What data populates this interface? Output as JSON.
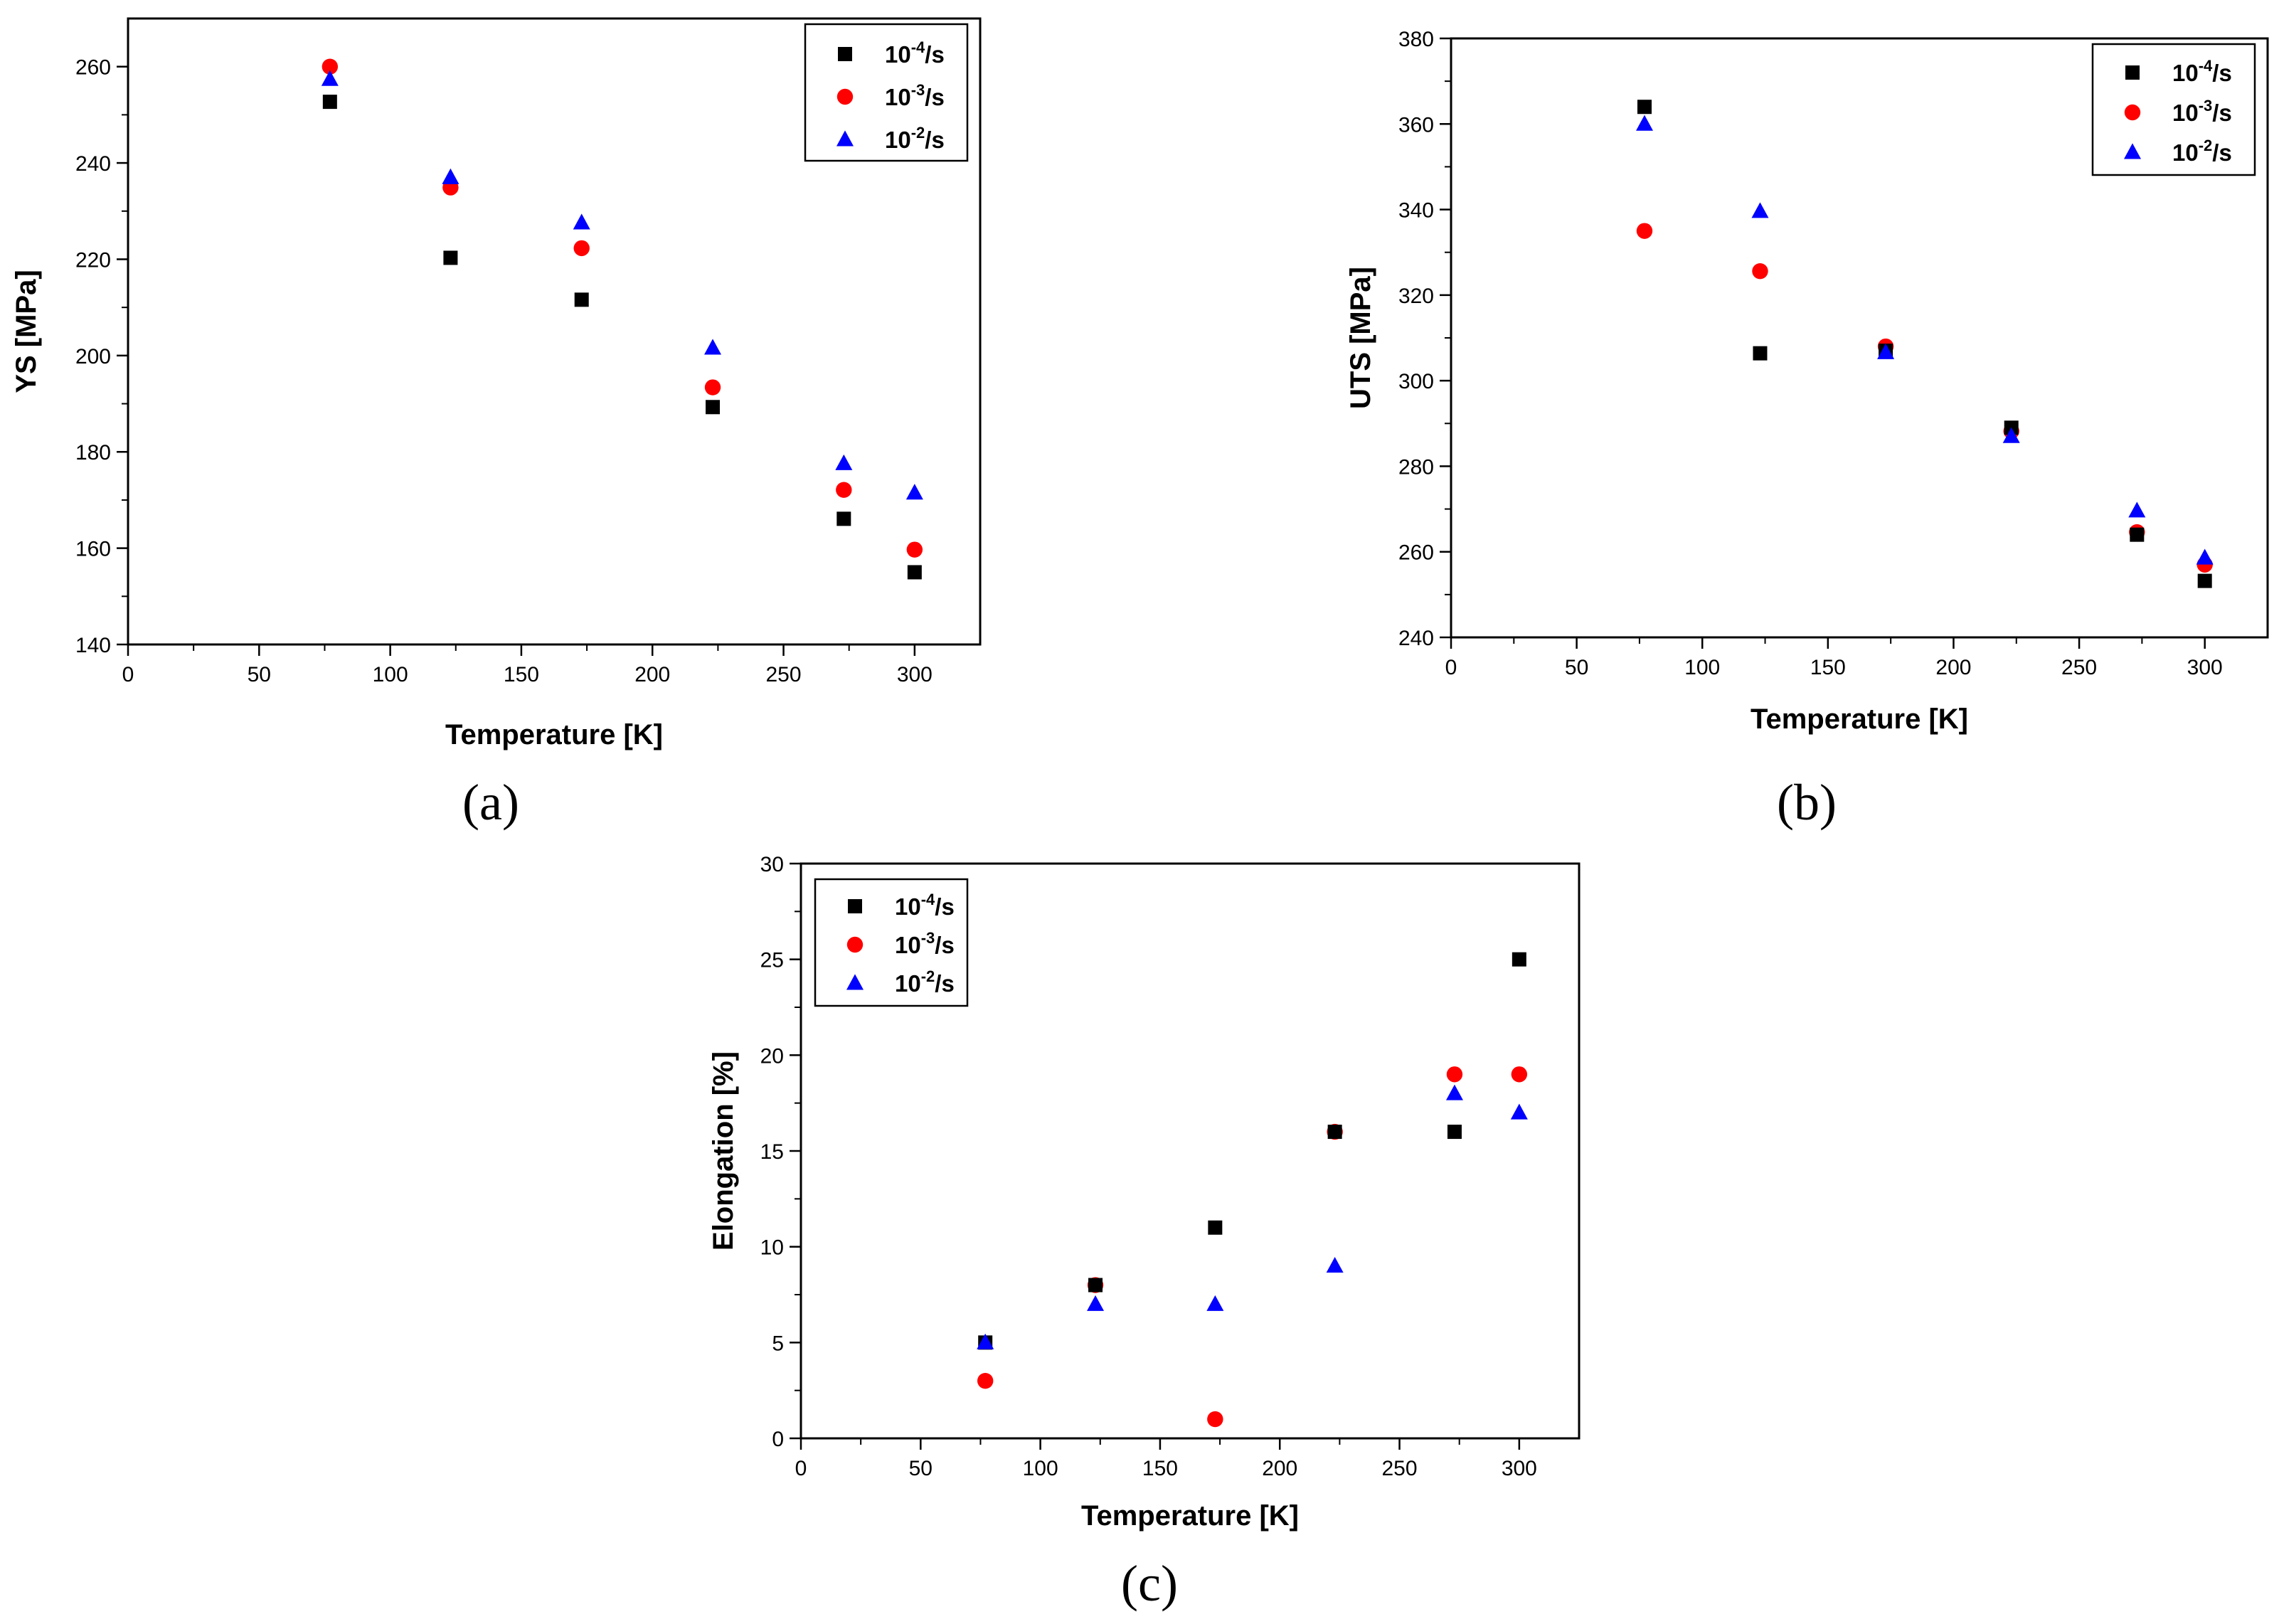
{
  "chart_data": [
    {
      "panel": "(a)",
      "type": "scatter",
      "xlabel": "Temperature [K]",
      "ylabel": "YS [MPa]",
      "xlim": [
        0,
        325
      ],
      "ylim": [
        140,
        270
      ],
      "xticks": [
        0,
        50,
        100,
        150,
        200,
        250,
        300
      ],
      "yticks": [
        140,
        160,
        180,
        200,
        220,
        240,
        260
      ],
      "legend_position": "top-right",
      "x": [
        77,
        123,
        173,
        223,
        273,
        300
      ],
      "series": [
        {
          "name": "10^-4/s",
          "base": "10",
          "exponent": "-4",
          "unit": "/s",
          "marker": "square",
          "color": "#000000",
          "values": [
            252.7,
            220.3,
            211.6,
            189.3,
            166.1,
            155.0
          ]
        },
        {
          "name": "10^-3/s",
          "base": "10",
          "exponent": "-3",
          "unit": "/s",
          "marker": "circle",
          "color": "#ff0000",
          "values": [
            260.0,
            234.9,
            222.3,
            193.4,
            172.1,
            159.7
          ]
        },
        {
          "name": "10^-2/s",
          "base": "10",
          "exponent": "-2",
          "unit": "/s",
          "marker": "triangle",
          "color": "#0000ff",
          "values": [
            257.4,
            237.0,
            227.6,
            201.6,
            177.6,
            171.5
          ]
        }
      ]
    },
    {
      "panel": "(b)",
      "type": "scatter",
      "xlabel": "Temperature [K]",
      "ylabel": "UTS [MPa]",
      "xlim": [
        0,
        325
      ],
      "ylim": [
        240,
        380
      ],
      "xticks": [
        0,
        50,
        100,
        150,
        200,
        250,
        300
      ],
      "yticks": [
        240,
        260,
        280,
        300,
        320,
        340,
        360,
        380
      ],
      "legend_position": "top-right",
      "x": [
        77,
        123,
        173,
        223,
        273,
        300
      ],
      "series": [
        {
          "name": "10^-4/s",
          "base": "10",
          "exponent": "-4",
          "unit": "/s",
          "marker": "square",
          "color": "#000000",
          "values": [
            364.0,
            306.4,
            307.0,
            289.0,
            264.0,
            253.2
          ]
        },
        {
          "name": "10^-3/s",
          "base": "10",
          "exponent": "-3",
          "unit": "/s",
          "marker": "circle",
          "color": "#ff0000",
          "values": [
            335.0,
            325.6,
            308.0,
            288.2,
            264.6,
            257.0
          ]
        },
        {
          "name": "10^-2/s",
          "base": "10",
          "exponent": "-2",
          "unit": "/s",
          "marker": "triangle",
          "color": "#0000ff",
          "values": [
            360.0,
            339.6,
            306.6,
            287.0,
            269.6,
            258.6
          ]
        }
      ]
    },
    {
      "panel": "(c)",
      "type": "scatter",
      "xlabel": "Temperature [K]",
      "ylabel": "Elongation [%]",
      "xlim": [
        0,
        325
      ],
      "ylim": [
        0,
        30
      ],
      "xticks": [
        0,
        50,
        100,
        150,
        200,
        250,
        300
      ],
      "yticks": [
        0,
        5,
        10,
        15,
        20,
        25,
        30
      ],
      "legend_position": "top-left",
      "x": [
        77,
        123,
        173,
        223,
        273,
        300
      ],
      "series": [
        {
          "name": "10^-4/s",
          "base": "10",
          "exponent": "-4",
          "unit": "/s",
          "marker": "square",
          "color": "#000000",
          "values": [
            5,
            8,
            11,
            16,
            16,
            25
          ]
        },
        {
          "name": "10^-3/s",
          "base": "10",
          "exponent": "-3",
          "unit": "/s",
          "marker": "circle",
          "color": "#ff0000",
          "values": [
            3,
            8,
            1,
            16,
            19,
            19
          ]
        },
        {
          "name": "10^-2/s",
          "base": "10",
          "exponent": "-2",
          "unit": "/s",
          "marker": "triangle",
          "color": "#0000ff",
          "values": [
            5,
            7,
            7,
            9,
            18,
            17
          ]
        }
      ]
    }
  ]
}
